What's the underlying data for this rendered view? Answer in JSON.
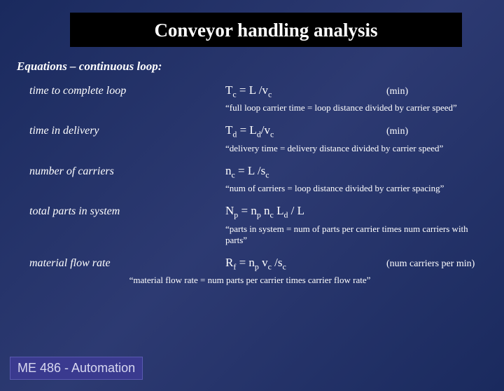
{
  "title": "Conveyor handling analysis",
  "section_header": "Equations – continuous loop:",
  "rows": [
    {
      "label": "time to complete loop",
      "formula_html": "T<sub>c</sub> = L /v<sub>c</sub>",
      "unit": "(min)",
      "note": "“full loop carrier time = loop distance divided by carrier speed”",
      "note_center": false
    },
    {
      "label": "time in delivery",
      "formula_html": "T<sub>d</sub> = L<sub>d</sub>/v<sub>c</sub>",
      "unit": "(min)",
      "note": "“delivery time = delivery distance divided by carrier speed”",
      "note_center": false
    },
    {
      "label": "number of carriers",
      "formula_html": "n<sub>c</sub> = L /s<sub>c</sub>",
      "unit": "",
      "note": "“num of carriers = loop distance divided by carrier spacing”",
      "note_center": false
    },
    {
      "label": "total parts in system",
      "formula_html": "N<sub>p</sub> = n<sub>p</sub> n<sub>c</sub> L<sub>d</sub> / L",
      "unit": "",
      "note": "“parts in system = num of parts per carrier times num carriers with parts”",
      "note_center": false
    },
    {
      "label": "material flow rate",
      "formula_html": "R<sub>f</sub> = n<sub>p</sub> v<sub>c</sub> /s<sub>c</sub>",
      "unit": "(num carriers per min)",
      "note": "“material flow rate = num parts per carrier times carrier flow rate”",
      "note_center": true
    }
  ],
  "footer": "ME 486 - Automation",
  "colors": {
    "bg_start": "#1a2a5e",
    "bg_end": "#2d3a72",
    "title_bg": "#000000",
    "text": "#ffffff",
    "footer_bg": "#3a3a8f",
    "footer_border": "#5a5ab0",
    "footer_text": "#d8d8f0"
  },
  "fonts": {
    "title_size_pt": 27,
    "section_header_size_pt": 17,
    "label_size_pt": 16,
    "formula_size_pt": 17,
    "unit_size_pt": 14,
    "note_size_pt": 13,
    "footer_size_pt": 18
  }
}
